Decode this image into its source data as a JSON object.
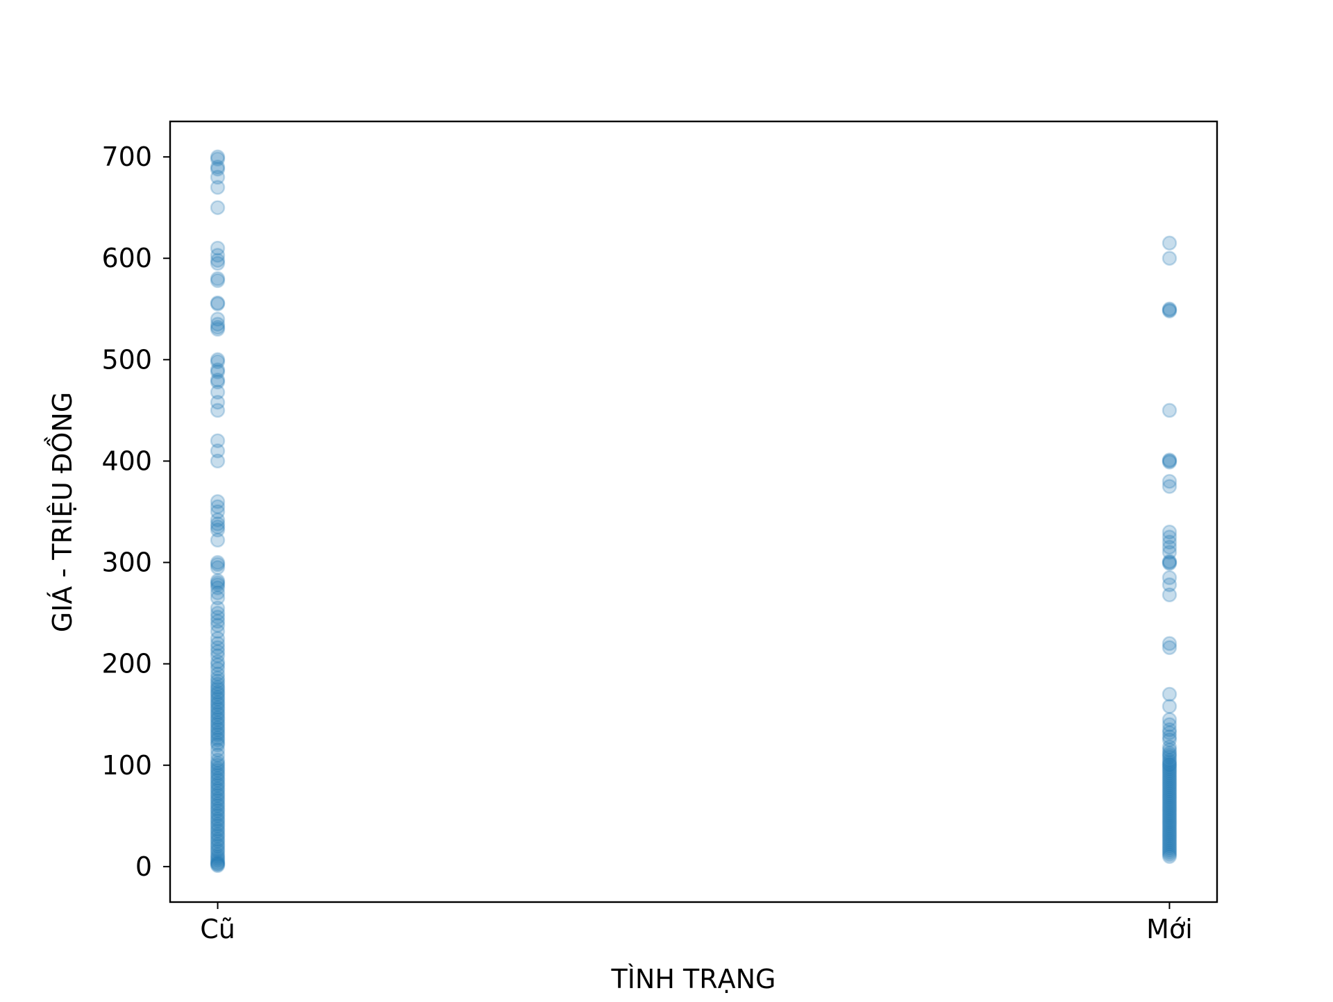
{
  "chart_data": {
    "type": "scatter",
    "title": "",
    "xlabel": "TÌNH TRẠNG",
    "ylabel": "GIÁ - TRIỆU ĐỒNG",
    "categories": [
      "Cũ",
      "Mới"
    ],
    "ylim": [
      -35,
      735
    ],
    "yticks": [
      0,
      100,
      200,
      300,
      400,
      500,
      600,
      700
    ],
    "grid": false,
    "legend": false,
    "marker_color": "#1f77b4",
    "marker_alpha": 0.25,
    "series": [
      {
        "values": [
          [
            0,
            700
          ],
          [
            0,
            698
          ],
          [
            0,
            690
          ],
          [
            0,
            688
          ],
          [
            0,
            680
          ],
          [
            0,
            670
          ],
          [
            0,
            650
          ],
          [
            0,
            610
          ],
          [
            0,
            603
          ],
          [
            0,
            598
          ],
          [
            0,
            595
          ],
          [
            0,
            580
          ],
          [
            0,
            578
          ],
          [
            0,
            556
          ],
          [
            0,
            555
          ],
          [
            0,
            540
          ],
          [
            0,
            535
          ],
          [
            0,
            532
          ],
          [
            0,
            530
          ],
          [
            0,
            500
          ],
          [
            0,
            498
          ],
          [
            0,
            490
          ],
          [
            0,
            488
          ],
          [
            0,
            480
          ],
          [
            0,
            478
          ],
          [
            0,
            468
          ],
          [
            0,
            458
          ],
          [
            0,
            450
          ],
          [
            0,
            420
          ],
          [
            0,
            410
          ],
          [
            0,
            400
          ],
          [
            0,
            360
          ],
          [
            0,
            355
          ],
          [
            0,
            350
          ],
          [
            0,
            342
          ],
          [
            0,
            338
          ],
          [
            0,
            335
          ],
          [
            0,
            332
          ],
          [
            0,
            322
          ],
          [
            0,
            300
          ],
          [
            0,
            298
          ],
          [
            0,
            295
          ],
          [
            0,
            282
          ],
          [
            0,
            280
          ],
          [
            0,
            278
          ],
          [
            0,
            275
          ],
          [
            0,
            270
          ],
          [
            0,
            265
          ],
          [
            0,
            255
          ],
          [
            0,
            250
          ],
          [
            0,
            246
          ],
          [
            0,
            242
          ],
          [
            0,
            238
          ],
          [
            0,
            232
          ],
          [
            0,
            225
          ],
          [
            0,
            220
          ],
          [
            0,
            216
          ],
          [
            0,
            212
          ],
          [
            0,
            208
          ],
          [
            0,
            202
          ],
          [
            0,
            199
          ],
          [
            0,
            195
          ],
          [
            0,
            190
          ],
          [
            0,
            186
          ],
          [
            0,
            183
          ],
          [
            0,
            180
          ],
          [
            0,
            177
          ],
          [
            0,
            175
          ],
          [
            0,
            172
          ],
          [
            0,
            170
          ],
          [
            0,
            167
          ],
          [
            0,
            165
          ],
          [
            0,
            162
          ],
          [
            0,
            160
          ],
          [
            0,
            157
          ],
          [
            0,
            155
          ],
          [
            0,
            152
          ],
          [
            0,
            150
          ],
          [
            0,
            147
          ],
          [
            0,
            145
          ],
          [
            0,
            142
          ],
          [
            0,
            140
          ],
          [
            0,
            137
          ],
          [
            0,
            135
          ],
          [
            0,
            132
          ],
          [
            0,
            130
          ],
          [
            0,
            127
          ],
          [
            0,
            125
          ],
          [
            0,
            122
          ],
          [
            0,
            120
          ],
          [
            0,
            115
          ],
          [
            0,
            110
          ],
          [
            0,
            105
          ],
          [
            0,
            102
          ],
          [
            0,
            100
          ],
          [
            0,
            97
          ],
          [
            0,
            95
          ],
          [
            0,
            92
          ],
          [
            0,
            90
          ],
          [
            0,
            87
          ],
          [
            0,
            85
          ],
          [
            0,
            82
          ],
          [
            0,
            80
          ],
          [
            0,
            77
          ],
          [
            0,
            75
          ],
          [
            0,
            72
          ],
          [
            0,
            70
          ],
          [
            0,
            67
          ],
          [
            0,
            65
          ],
          [
            0,
            62
          ],
          [
            0,
            60
          ],
          [
            0,
            57
          ],
          [
            0,
            55
          ],
          [
            0,
            52
          ],
          [
            0,
            50
          ],
          [
            0,
            47
          ],
          [
            0,
            45
          ],
          [
            0,
            42
          ],
          [
            0,
            40
          ],
          [
            0,
            37
          ],
          [
            0,
            35
          ],
          [
            0,
            32
          ],
          [
            0,
            30
          ],
          [
            0,
            27
          ],
          [
            0,
            25
          ],
          [
            0,
            22
          ],
          [
            0,
            20
          ],
          [
            0,
            17
          ],
          [
            0,
            15
          ],
          [
            0,
            12
          ],
          [
            0,
            10
          ],
          [
            0,
            8
          ],
          [
            0,
            6
          ],
          [
            0,
            4
          ],
          [
            0,
            3
          ],
          [
            0,
            2
          ],
          [
            0,
            1
          ],
          [
            1,
            615
          ],
          [
            1,
            600
          ],
          [
            1,
            550
          ],
          [
            1,
            549
          ],
          [
            1,
            548
          ],
          [
            1,
            450
          ],
          [
            1,
            401
          ],
          [
            1,
            400
          ],
          [
            1,
            399
          ],
          [
            1,
            380
          ],
          [
            1,
            375
          ],
          [
            1,
            330
          ],
          [
            1,
            325
          ],
          [
            1,
            320
          ],
          [
            1,
            315
          ],
          [
            1,
            310
          ],
          [
            1,
            301
          ],
          [
            1,
            300
          ],
          [
            1,
            299
          ],
          [
            1,
            285
          ],
          [
            1,
            278
          ],
          [
            1,
            268
          ],
          [
            1,
            220
          ],
          [
            1,
            216
          ],
          [
            1,
            170
          ],
          [
            1,
            158
          ],
          [
            1,
            145
          ],
          [
            1,
            140
          ],
          [
            1,
            135
          ],
          [
            1,
            132
          ],
          [
            1,
            128
          ],
          [
            1,
            125
          ],
          [
            1,
            118
          ],
          [
            1,
            115
          ],
          [
            1,
            112
          ],
          [
            1,
            110
          ],
          [
            1,
            108
          ],
          [
            1,
            105
          ],
          [
            1,
            103
          ],
          [
            1,
            101
          ],
          [
            1,
            100
          ],
          [
            1,
            98
          ],
          [
            1,
            96
          ],
          [
            1,
            94
          ],
          [
            1,
            92
          ],
          [
            1,
            90
          ],
          [
            1,
            88
          ],
          [
            1,
            86
          ],
          [
            1,
            84
          ],
          [
            1,
            82
          ],
          [
            1,
            80
          ],
          [
            1,
            78
          ],
          [
            1,
            76
          ],
          [
            1,
            74
          ],
          [
            1,
            72
          ],
          [
            1,
            70
          ],
          [
            1,
            68
          ],
          [
            1,
            66
          ],
          [
            1,
            64
          ],
          [
            1,
            62
          ],
          [
            1,
            60
          ],
          [
            1,
            58
          ],
          [
            1,
            56
          ],
          [
            1,
            54
          ],
          [
            1,
            52
          ],
          [
            1,
            50
          ],
          [
            1,
            48
          ],
          [
            1,
            46
          ],
          [
            1,
            44
          ],
          [
            1,
            42
          ],
          [
            1,
            40
          ],
          [
            1,
            38
          ],
          [
            1,
            36
          ],
          [
            1,
            34
          ],
          [
            1,
            32
          ],
          [
            1,
            30
          ],
          [
            1,
            28
          ],
          [
            1,
            26
          ],
          [
            1,
            24
          ],
          [
            1,
            22
          ],
          [
            1,
            20
          ],
          [
            1,
            18
          ],
          [
            1,
            16
          ],
          [
            1,
            14
          ],
          [
            1,
            12
          ],
          [
            1,
            10
          ]
        ]
      }
    ]
  }
}
